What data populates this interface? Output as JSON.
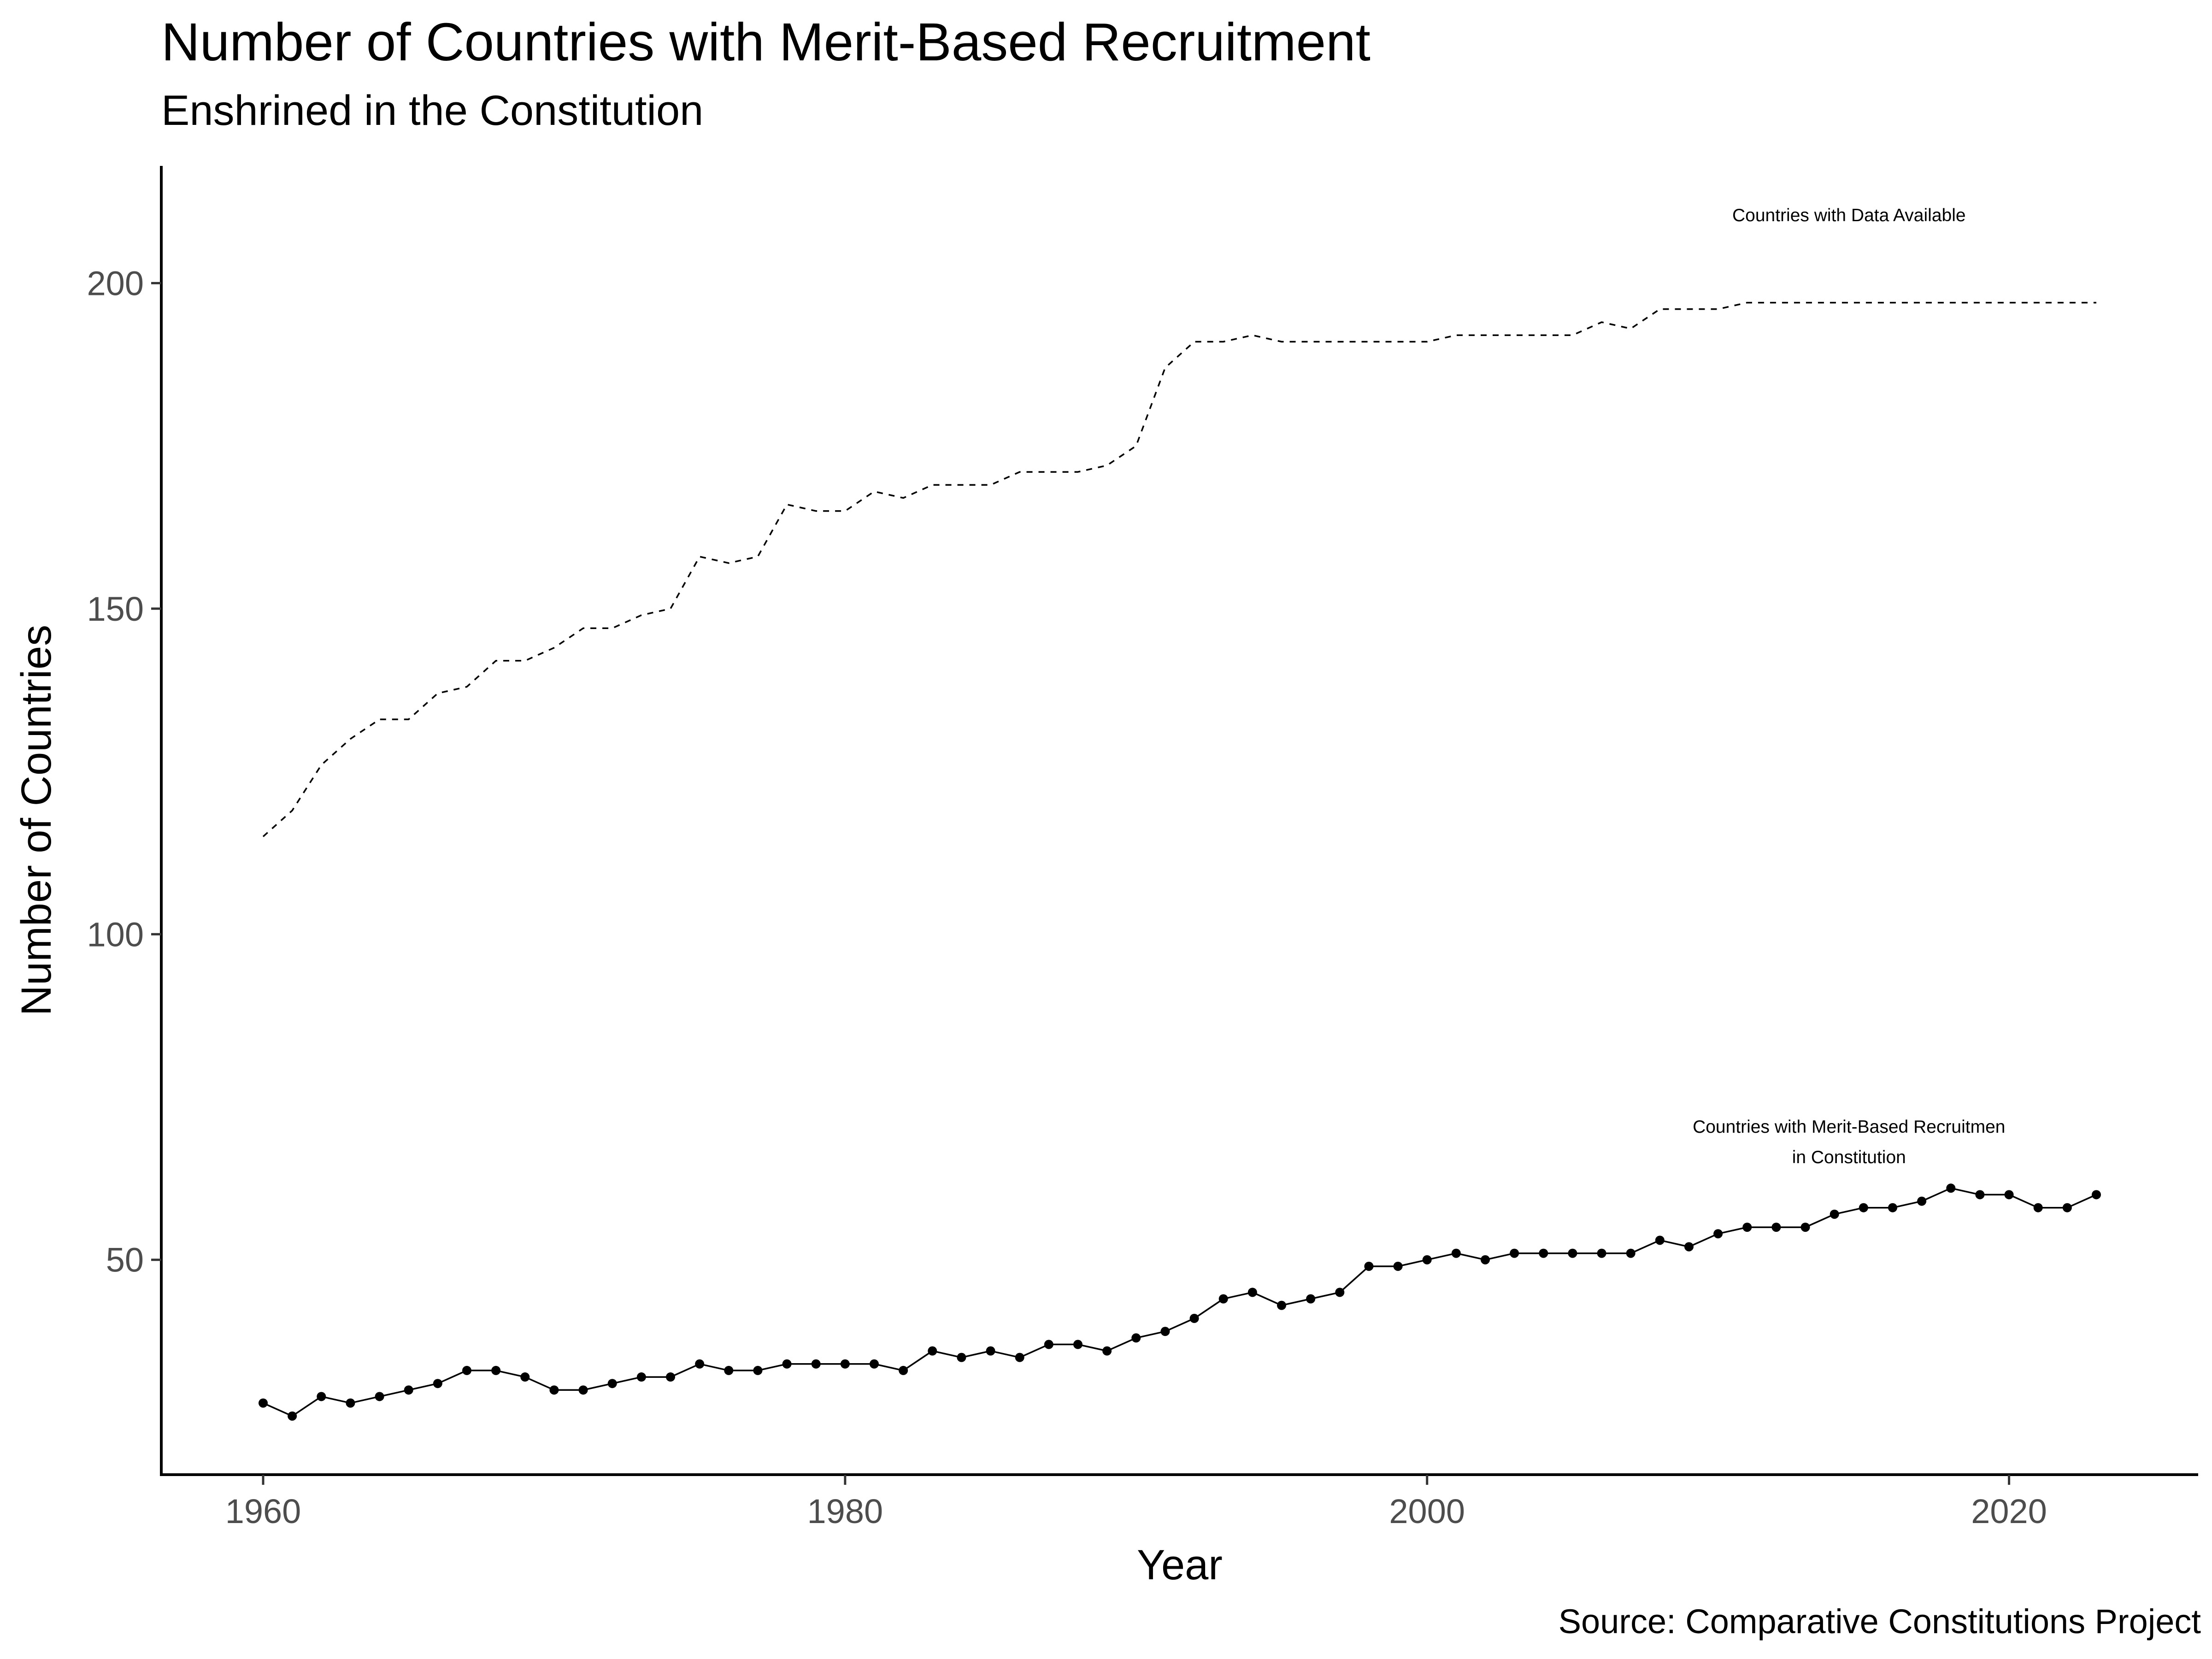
{
  "chart_data": {
    "type": "line",
    "title": "Number of Countries with Merit-Based Recruitment",
    "subtitle": "Enshrined in the Constitution",
    "caption": "Source: Comparative Constitutions Project",
    "xlabel": "Year",
    "ylabel": "Number of Countries",
    "xlim": [
      1956.5,
      2026.5
    ],
    "ylim": [
      17,
      218
    ],
    "x_ticks": [
      1960,
      1980,
      2000,
      2020
    ],
    "y_ticks": [
      50,
      100,
      150,
      200
    ],
    "grid": false,
    "x": [
      1960,
      1961,
      1962,
      1963,
      1964,
      1965,
      1966,
      1967,
      1968,
      1969,
      1970,
      1971,
      1972,
      1973,
      1974,
      1975,
      1976,
      1977,
      1978,
      1979,
      1980,
      1981,
      1982,
      1983,
      1984,
      1985,
      1986,
      1987,
      1988,
      1989,
      1990,
      1991,
      1992,
      1993,
      1994,
      1995,
      1996,
      1997,
      1998,
      1999,
      2000,
      2001,
      2002,
      2003,
      2004,
      2005,
      2006,
      2007,
      2008,
      2009,
      2010,
      2011,
      2012,
      2013,
      2014,
      2015,
      2016,
      2017,
      2018,
      2019,
      2020,
      2021,
      2022,
      2023
    ],
    "series": [
      {
        "style": "dashed",
        "markers": false,
        "values": [
          115,
          119,
          126,
          130,
          133,
          133,
          137,
          138,
          142,
          142,
          144,
          147,
          147,
          149,
          150,
          158,
          157,
          158,
          166,
          165,
          165,
          168,
          167,
          169,
          169,
          169,
          171,
          171,
          171,
          172,
          175,
          187,
          191,
          191,
          192,
          191,
          191,
          191,
          191,
          191,
          191,
          192,
          192,
          192,
          192,
          192,
          194,
          193,
          196,
          196,
          196,
          197,
          197,
          197,
          197,
          197,
          197,
          197,
          197,
          197,
          197,
          197,
          197,
          197
        ]
      },
      {
        "style": "solid",
        "markers": true,
        "values": [
          28,
          26,
          29,
          28,
          29,
          30,
          31,
          33,
          33,
          32,
          30,
          30,
          31,
          32,
          32,
          34,
          33,
          33,
          34,
          34,
          34,
          34,
          33,
          36,
          35,
          36,
          35,
          37,
          37,
          36,
          38,
          39,
          41,
          44,
          45,
          43,
          44,
          45,
          49,
          49,
          50,
          51,
          50,
          51,
          51,
          51,
          51,
          51,
          53,
          52,
          54,
          55,
          55,
          55,
          57,
          58,
          58,
          59,
          61,
          60,
          60,
          58,
          58,
          60
        ]
      }
    ],
    "annotations": [
      {
        "lines": [
          "Countries with Data Available"
        ],
        "x": 2014.5,
        "y": 209.5
      },
      {
        "lines": [
          "Countries with Merit-Based Recruitmen",
          "in Constitution"
        ],
        "x": 2014.5,
        "y": 69.5
      }
    ]
  }
}
